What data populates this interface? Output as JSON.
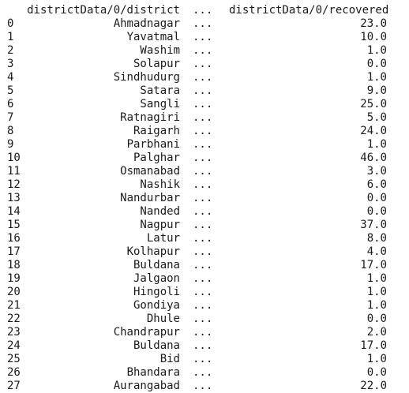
{
  "table": {
    "columns": {
      "district": "districtData/0/district",
      "ellipsis": "...",
      "recovered": "districtData/0/recovered"
    },
    "rows": [
      {
        "index": "0",
        "district": "Ahmadnagar",
        "ellipsis": "...",
        "recovered": "23.0"
      },
      {
        "index": "1",
        "district": "Yavatmal",
        "ellipsis": "...",
        "recovered": "10.0"
      },
      {
        "index": "2",
        "district": "Washim",
        "ellipsis": "...",
        "recovered": "1.0"
      },
      {
        "index": "3",
        "district": "Solapur",
        "ellipsis": "...",
        "recovered": "0.0"
      },
      {
        "index": "4",
        "district": "Sindhudurg",
        "ellipsis": "...",
        "recovered": "1.0"
      },
      {
        "index": "5",
        "district": "Satara",
        "ellipsis": "...",
        "recovered": "9.0"
      },
      {
        "index": "6",
        "district": "Sangli",
        "ellipsis": "...",
        "recovered": "25.0"
      },
      {
        "index": "7",
        "district": "Ratnagiri",
        "ellipsis": "...",
        "recovered": "5.0"
      },
      {
        "index": "8",
        "district": "Raigarh",
        "ellipsis": "...",
        "recovered": "24.0"
      },
      {
        "index": "9",
        "district": "Parbhani",
        "ellipsis": "...",
        "recovered": "1.0"
      },
      {
        "index": "10",
        "district": "Palghar",
        "ellipsis": "...",
        "recovered": "46.0"
      },
      {
        "index": "11",
        "district": "Osmanabad",
        "ellipsis": "...",
        "recovered": "3.0"
      },
      {
        "index": "12",
        "district": "Nashik",
        "ellipsis": "...",
        "recovered": "6.0"
      },
      {
        "index": "13",
        "district": "Nandurbar",
        "ellipsis": "...",
        "recovered": "0.0"
      },
      {
        "index": "14",
        "district": "Nanded",
        "ellipsis": "...",
        "recovered": "0.0"
      },
      {
        "index": "15",
        "district": "Nagpur",
        "ellipsis": "...",
        "recovered": "37.0"
      },
      {
        "index": "16",
        "district": "Latur",
        "ellipsis": "...",
        "recovered": "8.0"
      },
      {
        "index": "17",
        "district": "Kolhapur",
        "ellipsis": "...",
        "recovered": "4.0"
      },
      {
        "index": "18",
        "district": "Buldana",
        "ellipsis": "...",
        "recovered": "17.0"
      },
      {
        "index": "19",
        "district": "Jalgaon",
        "ellipsis": "...",
        "recovered": "1.0"
      },
      {
        "index": "20",
        "district": "Hingoli",
        "ellipsis": "...",
        "recovered": "1.0"
      },
      {
        "index": "21",
        "district": "Gondiya",
        "ellipsis": "...",
        "recovered": "1.0"
      },
      {
        "index": "22",
        "district": "Dhule",
        "ellipsis": "...",
        "recovered": "0.0"
      },
      {
        "index": "23",
        "district": "Chandrapur",
        "ellipsis": "...",
        "recovered": "2.0"
      },
      {
        "index": "24",
        "district": "Buldana",
        "ellipsis": "...",
        "recovered": "17.0"
      },
      {
        "index": "25",
        "district": "Bid",
        "ellipsis": "...",
        "recovered": "1.0"
      },
      {
        "index": "26",
        "district": "Bhandara",
        "ellipsis": "...",
        "recovered": "0.0"
      },
      {
        "index": "27",
        "district": "Aurangabad",
        "ellipsis": "...",
        "recovered": "22.0"
      }
    ]
  }
}
